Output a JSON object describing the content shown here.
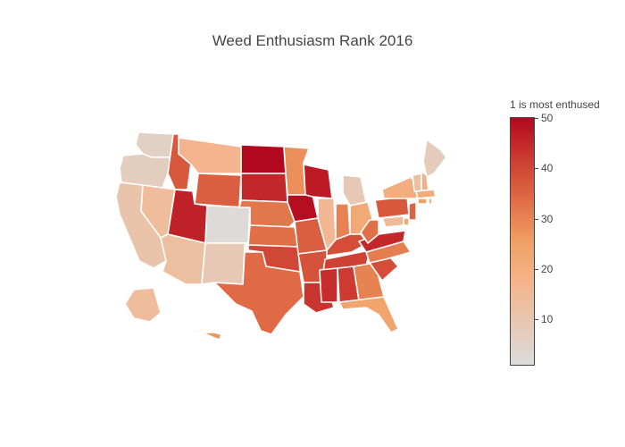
{
  "title": "Weed Enthusiasm Rank 2016",
  "colorbar": {
    "title": "1 is most enthused",
    "min": 1,
    "max": 50,
    "ticks": [
      "10",
      "20",
      "30",
      "40",
      "50"
    ]
  },
  "colorscale": [
    "#dcdcdc",
    "#e6c8b4",
    "#f5b48c",
    "#f0a064",
    "#e06c46",
    "#cc3c32",
    "#b2081f"
  ],
  "map": {
    "type": "choropleth",
    "scope": "USA",
    "locationmode": "USA-states",
    "states": [
      {
        "code": "WA",
        "value": 6
      },
      {
        "code": "OR",
        "value": 7
      },
      {
        "code": "CA",
        "value": 11
      },
      {
        "code": "NV",
        "value": 14
      },
      {
        "code": "ID",
        "value": 37
      },
      {
        "code": "MT",
        "value": 17
      },
      {
        "code": "WY",
        "value": 36
      },
      {
        "code": "UT",
        "value": 46
      },
      {
        "code": "AZ",
        "value": 13
      },
      {
        "code": "CO",
        "value": 2
      },
      {
        "code": "NM",
        "value": 9
      },
      {
        "code": "ND",
        "value": 50
      },
      {
        "code": "SD",
        "value": 45
      },
      {
        "code": "NE",
        "value": 32
      },
      {
        "code": "KS",
        "value": 33
      },
      {
        "code": "OK",
        "value": 40
      },
      {
        "code": "TX",
        "value": 34
      },
      {
        "code": "MN",
        "value": 28
      },
      {
        "code": "IA",
        "value": 49
      },
      {
        "code": "MO",
        "value": 36
      },
      {
        "code": "AR",
        "value": 38
      },
      {
        "code": "LA",
        "value": 43
      },
      {
        "code": "WI",
        "value": 47
      },
      {
        "code": "IL",
        "value": 16
      },
      {
        "code": "MI",
        "value": 9
      },
      {
        "code": "IN",
        "value": 30
      },
      {
        "code": "OH",
        "value": 22
      },
      {
        "code": "KY",
        "value": 39
      },
      {
        "code": "TN",
        "value": 41
      },
      {
        "code": "MS",
        "value": 44
      },
      {
        "code": "AL",
        "value": 42
      },
      {
        "code": "GA",
        "value": 30
      },
      {
        "code": "FL",
        "value": 24
      },
      {
        "code": "SC",
        "value": 39
      },
      {
        "code": "NC",
        "value": 31
      },
      {
        "code": "VA",
        "value": 45
      },
      {
        "code": "WV",
        "value": 33
      },
      {
        "code": "PA",
        "value": 37
      },
      {
        "code": "NY",
        "value": 20
      },
      {
        "code": "ME",
        "value": 8
      },
      {
        "code": "VT",
        "value": 12
      },
      {
        "code": "NH",
        "value": 19
      },
      {
        "code": "MA",
        "value": 21
      },
      {
        "code": "CT",
        "value": 25
      },
      {
        "code": "RI",
        "value": 18
      },
      {
        "code": "NJ",
        "value": 35
      },
      {
        "code": "DE",
        "value": 23
      },
      {
        "code": "MD",
        "value": 15
      },
      {
        "code": "AK",
        "value": 14
      },
      {
        "code": "HI",
        "value": 27
      }
    ]
  }
}
